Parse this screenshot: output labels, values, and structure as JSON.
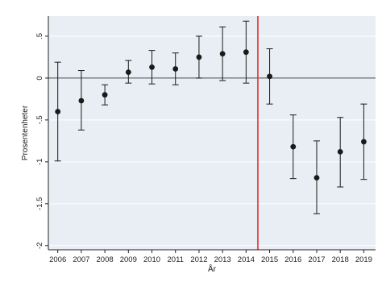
{
  "chart_data": {
    "type": "scatter",
    "subtype": "point estimates with confidence intervals",
    "title": "",
    "xlabel": "År",
    "ylabel": "Prosentenheter",
    "x": [
      2006,
      2007,
      2008,
      2009,
      2010,
      2011,
      2012,
      2013,
      2014,
      2015,
      2016,
      2017,
      2018,
      2019
    ],
    "x_tick_labels": [
      "2006",
      "2007",
      "2008",
      "2009",
      "2010",
      "2011",
      "2012",
      "2013",
      "2014",
      "2015",
      "2016",
      "2017",
      "2018",
      "2019"
    ],
    "series": [
      {
        "estimate": [
          -0.4,
          -0.27,
          -0.2,
          0.07,
          0.13,
          0.11,
          0.25,
          0.29,
          0.31,
          0.02,
          -0.82,
          -1.19,
          -0.88,
          -0.76
        ],
        "ci_lower": [
          -0.99,
          -0.62,
          -0.32,
          -0.06,
          -0.07,
          -0.08,
          0.0,
          -0.03,
          -0.06,
          -0.31,
          -1.2,
          -1.62,
          -1.3,
          -1.21
        ],
        "ci_upper": [
          0.19,
          0.09,
          -0.08,
          0.21,
          0.33,
          0.3,
          0.5,
          0.61,
          0.68,
          0.35,
          -0.44,
          -0.75,
          -0.47,
          -0.31
        ]
      }
    ],
    "y_ticks": [
      0.5,
      0,
      -0.5,
      -1,
      -1.5,
      -2
    ],
    "y_tick_labels": [
      ".5",
      "0",
      "-.5",
      "-1",
      "-1.5",
      "-2"
    ],
    "ylim": [
      -2.05,
      0.74
    ],
    "xlim": [
      2005.6,
      2019.5
    ],
    "reference_lines": [
      {
        "axis": "y",
        "value": 0
      },
      {
        "axis": "x",
        "value": 2014.5
      }
    ],
    "grid": "horizontal",
    "legend": "none",
    "colors": {
      "plot_background": "#e9eef4",
      "grid": "#ffffff",
      "point": "#1a1a1a",
      "whisker": "#1a1a1a",
      "zero_line": "#444444",
      "vertical_line": "#e0302a",
      "axis": "#222222"
    }
  }
}
